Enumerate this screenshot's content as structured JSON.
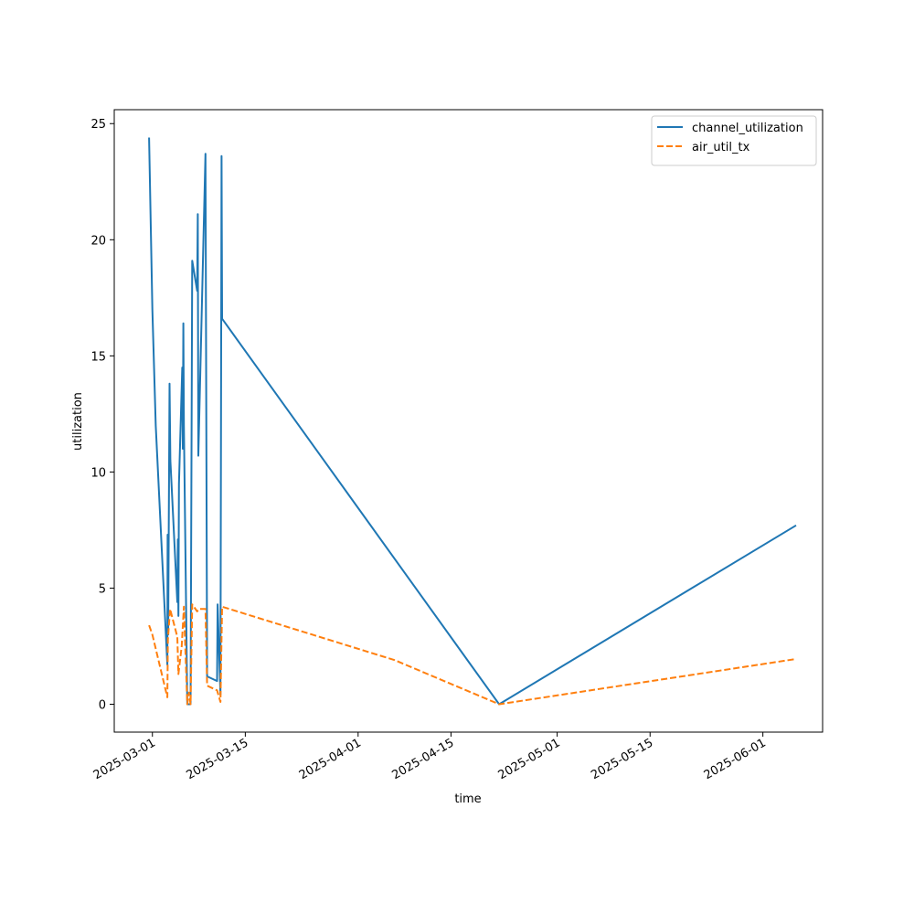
{
  "chart_data": {
    "type": "line",
    "title": "",
    "xlabel": "time",
    "ylabel": "utilization",
    "x_axis_type": "date",
    "xlim": [
      "2025-02-23T06:00",
      "2025-06-10T00:00"
    ],
    "ylim": [
      -1.2,
      25.6
    ],
    "x_ticks": [
      "2025-03-01",
      "2025-03-15",
      "2025-04-01",
      "2025-04-15",
      "2025-05-01",
      "2025-05-15",
      "2025-06-01"
    ],
    "y_ticks": [
      0,
      5,
      10,
      15,
      20,
      25
    ],
    "grid": false,
    "legend_position": "top-right",
    "series": [
      {
        "name": "channel_utilization",
        "color": "#1f77b4",
        "dash": "solid",
        "points": [
          {
            "x": "2025-02-28T12:00",
            "y": 24.4
          },
          {
            "x": "2025-03-01T00:00",
            "y": 17.0
          },
          {
            "x": "2025-03-01T12:00",
            "y": 12.0
          },
          {
            "x": "2025-03-03T06:00",
            "y": 1.7
          },
          {
            "x": "2025-03-03T07:00",
            "y": 7.3
          },
          {
            "x": "2025-03-03T09:00",
            "y": 3.0
          },
          {
            "x": "2025-03-03T11:00",
            "y": 7.3
          },
          {
            "x": "2025-03-03T14:00",
            "y": 13.8
          },
          {
            "x": "2025-03-03T17:00",
            "y": 10.5
          },
          {
            "x": "2025-03-04T18:00",
            "y": 4.4
          },
          {
            "x": "2025-03-04T20:00",
            "y": 7.1
          },
          {
            "x": "2025-03-04T22:00",
            "y": 3.8
          },
          {
            "x": "2025-03-05T00:00",
            "y": 9.5
          },
          {
            "x": "2025-03-05T12:00",
            "y": 14.5
          },
          {
            "x": "2025-03-05T14:00",
            "y": 11.0
          },
          {
            "x": "2025-03-05T16:00",
            "y": 16.4
          },
          {
            "x": "2025-03-05T18:00",
            "y": 12.0
          },
          {
            "x": "2025-03-06T06:00",
            "y": 0.0
          },
          {
            "x": "2025-03-06T18:00",
            "y": 0.0
          },
          {
            "x": "2025-03-07T00:00",
            "y": 19.1
          },
          {
            "x": "2025-03-07T18:00",
            "y": 17.8
          },
          {
            "x": "2025-03-07T20:00",
            "y": 21.1
          },
          {
            "x": "2025-03-07T22:00",
            "y": 10.7
          },
          {
            "x": "2025-03-09T00:00",
            "y": 23.7
          },
          {
            "x": "2025-03-09T06:00",
            "y": 1.2
          },
          {
            "x": "2025-03-10T18:00",
            "y": 1.0
          },
          {
            "x": "2025-03-10T20:00",
            "y": 4.3
          },
          {
            "x": "2025-03-11T06:00",
            "y": 0.4
          },
          {
            "x": "2025-03-11T10:00",
            "y": 23.6
          },
          {
            "x": "2025-03-11T12:00",
            "y": 16.6
          },
          {
            "x": "2025-04-22T06:00",
            "y": 0.0
          },
          {
            "x": "2025-06-06T00:00",
            "y": 7.7
          }
        ]
      },
      {
        "name": "air_util_tx",
        "color": "#ff7f0e",
        "dash": "dashed",
        "points": [
          {
            "x": "2025-02-28T12:00",
            "y": 3.4
          },
          {
            "x": "2025-03-01T00:00",
            "y": 3.0
          },
          {
            "x": "2025-03-03T06:00",
            "y": 0.3
          },
          {
            "x": "2025-03-03T08:00",
            "y": 2.8
          },
          {
            "x": "2025-03-03T16:00",
            "y": 4.1
          },
          {
            "x": "2025-03-04T18:00",
            "y": 2.9
          },
          {
            "x": "2025-03-04T22:00",
            "y": 1.3
          },
          {
            "x": "2025-03-05T10:00",
            "y": 2.5
          },
          {
            "x": "2025-03-05T18:00",
            "y": 4.2
          },
          {
            "x": "2025-03-06T06:00",
            "y": 0.0
          },
          {
            "x": "2025-03-06T12:00",
            "y": 0.5
          },
          {
            "x": "2025-03-06T18:00",
            "y": 0.0
          },
          {
            "x": "2025-03-07T00:00",
            "y": 4.3
          },
          {
            "x": "2025-03-07T18:00",
            "y": 4.0
          },
          {
            "x": "2025-03-08T00:00",
            "y": 4.1
          },
          {
            "x": "2025-03-09T00:00",
            "y": 4.1
          },
          {
            "x": "2025-03-09T06:00",
            "y": 0.8
          },
          {
            "x": "2025-03-10T18:00",
            "y": 0.6
          },
          {
            "x": "2025-03-11T06:00",
            "y": 0.1
          },
          {
            "x": "2025-03-11T12:00",
            "y": 4.2
          },
          {
            "x": "2025-04-06T12:00",
            "y": 1.9
          },
          {
            "x": "2025-04-22T06:00",
            "y": 0.0
          },
          {
            "x": "2025-06-06T00:00",
            "y": 1.95
          }
        ]
      }
    ]
  }
}
